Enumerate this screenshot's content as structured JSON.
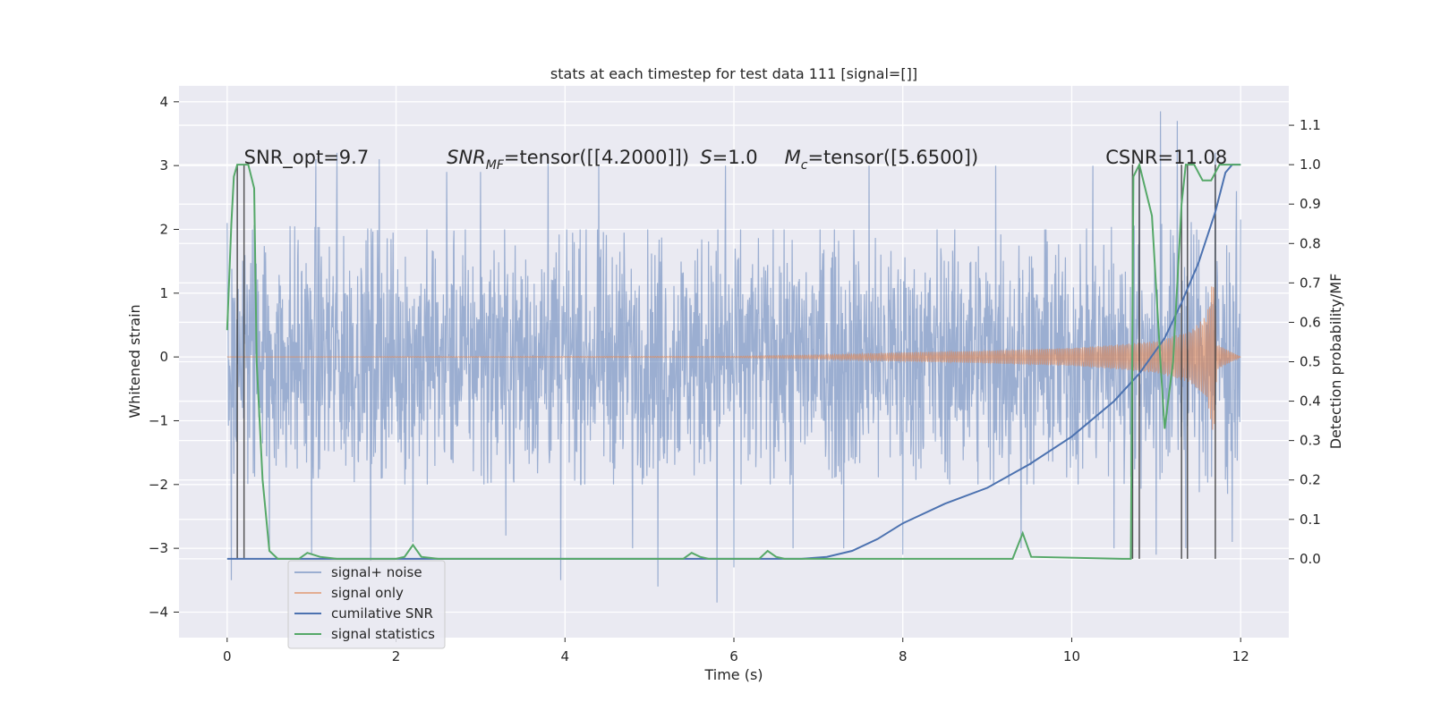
{
  "chart_data": {
    "type": "line",
    "title": "stats at each timestep for test data 111 [signal=[]]",
    "xlabel": "Time (s)",
    "ylabel_left": "Whitened strain",
    "ylabel_right": "Detection probability/MF",
    "xlim": [
      -0.57,
      12.57
    ],
    "ylim_left": [
      -4.4,
      4.25
    ],
    "ylim_right": [
      -0.2,
      1.2
    ],
    "x_ticks": [
      0,
      2,
      4,
      6,
      8,
      10,
      12
    ],
    "y_left_ticks": [
      -4,
      -3,
      -2,
      -1,
      0,
      1,
      2,
      3,
      4
    ],
    "y_right_ticks": [
      0.0,
      0.1,
      0.2,
      0.3,
      0.4,
      0.5,
      0.6,
      0.7,
      0.8,
      0.9,
      1.0,
      1.1
    ],
    "grid": true,
    "legend_position": "lower-left",
    "annotations": [
      {
        "text": "SNR_opt=9.7",
        "x": 0.2,
        "y": 3.0
      },
      {
        "text": "SNR_MF=tensor([[4.2000]])",
        "x": 2.6,
        "y": 3.0
      },
      {
        "text": "S=1.0",
        "x": 5.6,
        "y": 3.0
      },
      {
        "text": "M_c=tensor([5.6500])",
        "x": 6.6,
        "y": 3.0
      },
      {
        "text": "CSNR=11.08",
        "x": 10.4,
        "y": 3.0
      }
    ],
    "series": [
      {
        "name": "signal+ noise",
        "color": "#4c72b0",
        "alpha": 0.5,
        "axis": "left",
        "envelope_upper": [
          [
            0,
            1.3
          ],
          [
            2,
            1.25
          ],
          [
            4,
            1.25
          ],
          [
            6,
            1.25
          ],
          [
            8,
            1.25
          ],
          [
            10,
            1.25
          ],
          [
            12,
            1.35
          ]
        ],
        "envelope_lower": [
          [
            0,
            -1.3
          ],
          [
            2,
            -1.25
          ],
          [
            4,
            -1.25
          ],
          [
            6,
            -1.25
          ],
          [
            8,
            -1.25
          ],
          [
            10,
            -1.25
          ],
          [
            12,
            -1.35
          ]
        ],
        "peaks": [
          [
            0.0,
            2.1
          ],
          [
            0.3,
            2.0
          ],
          [
            1.05,
            3.1
          ],
          [
            1.3,
            3.2
          ],
          [
            1.8,
            3.1
          ],
          [
            2.6,
            2.9
          ],
          [
            3.0,
            2.9
          ],
          [
            3.8,
            3.1
          ],
          [
            4.4,
            3.0
          ],
          [
            5.9,
            3.0
          ],
          [
            7.6,
            3.0
          ],
          [
            9.1,
            3.0
          ],
          [
            10.25,
            3.0
          ],
          [
            10.8,
            3.0
          ],
          [
            11.05,
            3.85
          ],
          [
            11.25,
            3.7
          ],
          [
            11.7,
            3.2
          ],
          [
            11.95,
            2.6
          ]
        ],
        "troughs": [
          [
            0.05,
            -3.5
          ],
          [
            0.5,
            -3.0
          ],
          [
            1.0,
            -3.1
          ],
          [
            1.7,
            -3.2
          ],
          [
            2.2,
            -2.9
          ],
          [
            3.3,
            -2.8
          ],
          [
            3.95,
            -3.5
          ],
          [
            4.8,
            -3.0
          ],
          [
            5.1,
            -3.6
          ],
          [
            5.8,
            -3.85
          ],
          [
            6.0,
            -3.3
          ],
          [
            6.7,
            -3.0
          ],
          [
            7.3,
            -3.0
          ],
          [
            8.0,
            -3.1
          ],
          [
            9.4,
            -3.0
          ],
          [
            10.5,
            -3.0
          ],
          [
            11.0,
            -3.1
          ],
          [
            11.35,
            -3.0
          ],
          [
            11.9,
            -2.9
          ]
        ]
      },
      {
        "name": "signal only",
        "color": "#dd8452",
        "alpha": 0.6,
        "axis": "left",
        "amplitude": [
          [
            0,
            0.0
          ],
          [
            6.0,
            0.01
          ],
          [
            7.0,
            0.03
          ],
          [
            8.0,
            0.07
          ],
          [
            9.0,
            0.1
          ],
          [
            10.0,
            0.14
          ],
          [
            10.6,
            0.2
          ],
          [
            11.0,
            0.25
          ],
          [
            11.4,
            0.4
          ],
          [
            11.6,
            0.65
          ],
          [
            11.68,
            1.3
          ],
          [
            11.72,
            0.2
          ],
          [
            12.0,
            0.0
          ]
        ]
      },
      {
        "name": "cumilative SNR",
        "color": "#4c72b0",
        "axis": "right",
        "points": [
          [
            0,
            0.0
          ],
          [
            6.8,
            0.0
          ],
          [
            7.1,
            0.005
          ],
          [
            7.4,
            0.02
          ],
          [
            7.7,
            0.05
          ],
          [
            8.0,
            0.09
          ],
          [
            8.5,
            0.14
          ],
          [
            9.0,
            0.18
          ],
          [
            9.5,
            0.24
          ],
          [
            10.0,
            0.31
          ],
          [
            10.5,
            0.4
          ],
          [
            10.8,
            0.47
          ],
          [
            11.1,
            0.56
          ],
          [
            11.3,
            0.65
          ],
          [
            11.5,
            0.75
          ],
          [
            11.7,
            0.88
          ],
          [
            11.82,
            0.98
          ],
          [
            11.9,
            1.0
          ],
          [
            12.0,
            1.0
          ]
        ]
      },
      {
        "name": "signal statistics",
        "color": "#55a868",
        "axis": "right",
        "points": [
          [
            0,
            0.58
          ],
          [
            0.05,
            0.85
          ],
          [
            0.08,
            0.97
          ],
          [
            0.12,
            1.0
          ],
          [
            0.25,
            1.0
          ],
          [
            0.32,
            0.94
          ],
          [
            0.35,
            0.5
          ],
          [
            0.42,
            0.2
          ],
          [
            0.5,
            0.02
          ],
          [
            0.6,
            0.0
          ],
          [
            0.85,
            0.0
          ],
          [
            0.95,
            0.015
          ],
          [
            1.1,
            0.005
          ],
          [
            1.3,
            0.0
          ],
          [
            2.0,
            0.0
          ],
          [
            2.1,
            0.005
          ],
          [
            2.2,
            0.035
          ],
          [
            2.3,
            0.005
          ],
          [
            2.5,
            0.0
          ],
          [
            5.4,
            0.0
          ],
          [
            5.5,
            0.015
          ],
          [
            5.6,
            0.005
          ],
          [
            5.7,
            0.0
          ],
          [
            6.3,
            0.0
          ],
          [
            6.4,
            0.02
          ],
          [
            6.5,
            0.005
          ],
          [
            6.6,
            0.0
          ],
          [
            9.3,
            0.0
          ],
          [
            9.42,
            0.065
          ],
          [
            9.52,
            0.005
          ],
          [
            10.6,
            0.0
          ],
          [
            10.7,
            0.0
          ],
          [
            10.73,
            0.97
          ],
          [
            10.8,
            1.0
          ],
          [
            10.95,
            0.87
          ],
          [
            11.05,
            0.5
          ],
          [
            11.1,
            0.33
          ],
          [
            11.2,
            0.5
          ],
          [
            11.3,
            0.9
          ],
          [
            11.35,
            1.0
          ],
          [
            11.45,
            1.0
          ],
          [
            11.55,
            0.96
          ],
          [
            11.65,
            0.96
          ],
          [
            11.75,
            1.0
          ],
          [
            12.0,
            1.0
          ]
        ]
      }
    ],
    "vertical_lines": [
      0.12,
      0.2,
      10.72,
      10.8,
      11.3,
      11.37,
      11.7
    ]
  }
}
